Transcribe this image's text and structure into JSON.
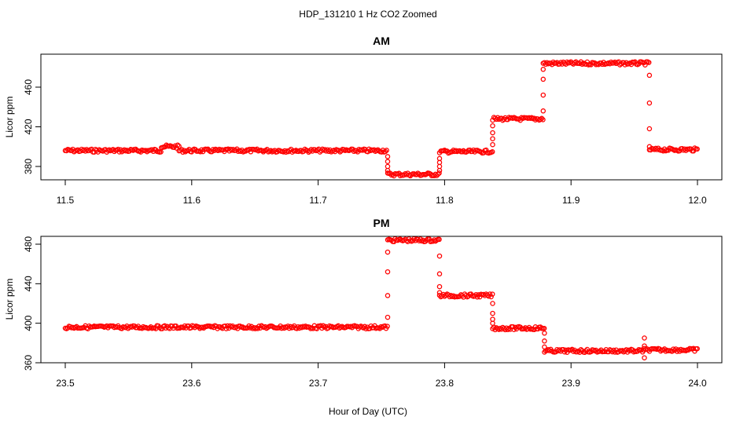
{
  "page_title": "HDP_131210  1 Hz CO2 Zoomed",
  "shared_xlabel": "Hour of Day (UTC)",
  "marker_color": "#ff0000",
  "chart_data": [
    {
      "type": "scatter",
      "title": "AM",
      "xlabel": "",
      "ylabel": "Licor ppm",
      "xlim": [
        11.5,
        12.0
      ],
      "ylim": [
        367,
        490
      ],
      "xticks": [
        "11.5",
        "11.6",
        "11.7",
        "11.8",
        "11.9",
        "12.0"
      ],
      "yticks": [
        "380",
        "420",
        "460"
      ],
      "grid": false,
      "series": [
        {
          "marker": "open-circle",
          "segments": [
            {
              "x": [
                11.5,
                11.576
              ],
              "y": 396
            },
            {
              "x": [
                11.576,
                11.59
              ],
              "y": 400
            },
            {
              "x": [
                11.59,
                11.755
              ],
              "y": 396
            },
            {
              "x": [
                11.755,
                11.796
              ],
              "y": 372
            },
            {
              "x": [
                11.796,
                11.838
              ],
              "y": 395
            },
            {
              "x": [
                11.838,
                11.878
              ],
              "y": 428
            },
            {
              "x": [
                11.878,
                11.962
              ],
              "y": 484
            },
            {
              "x": [
                11.962,
                12.0
              ],
              "y": 397
            }
          ],
          "transitions": [
            {
              "x": 11.755,
              "y": [
                390,
                385,
                380,
                376
              ]
            },
            {
              "x": 11.796,
              "y": [
                376,
                380,
                384,
                388
              ]
            },
            {
              "x": 11.838,
              "y": [
                402,
                408,
                414,
                421
              ]
            },
            {
              "x": 11.878,
              "y": [
                436,
                452,
                468,
                478
              ]
            },
            {
              "x": 11.962,
              "y": [
                472,
                444,
                418,
                400
              ]
            }
          ]
        }
      ]
    },
    {
      "type": "scatter",
      "title": "PM",
      "xlabel": "",
      "ylabel": "Licor ppm",
      "xlim": [
        23.5,
        24.0
      ],
      "ylim": [
        360,
        490
      ],
      "xticks": [
        "23.5",
        "23.6",
        "23.7",
        "23.8",
        "23.9",
        "24.0"
      ],
      "yticks": [
        "360",
        "400",
        "440",
        "480"
      ],
      "grid": false,
      "series": [
        {
          "marker": "open-circle",
          "segments": [
            {
              "x": [
                23.5,
                23.755
              ],
              "y": 396
            },
            {
              "x": [
                23.755,
                23.796
              ],
              "y": 484
            },
            {
              "x": [
                23.796,
                23.838
              ],
              "y": 428
            },
            {
              "x": [
                23.838,
                23.879
              ],
              "y": 395
            },
            {
              "x": [
                23.879,
                23.958
              ],
              "y": 372
            },
            {
              "x": [
                23.958,
                24.0
              ],
              "y": 373
            }
          ],
          "transitions": [
            {
              "x": 23.755,
              "y": [
                406,
                428,
                452,
                472
              ]
            },
            {
              "x": 23.796,
              "y": [
                468,
                450,
                437,
                431
              ]
            },
            {
              "x": 23.838,
              "y": [
                420,
                410,
                404,
                400
              ]
            },
            {
              "x": 23.879,
              "y": [
                390,
                382,
                376
              ]
            },
            {
              "x": 23.958,
              "y": [
                385,
                377,
                365
              ]
            }
          ]
        }
      ]
    }
  ]
}
